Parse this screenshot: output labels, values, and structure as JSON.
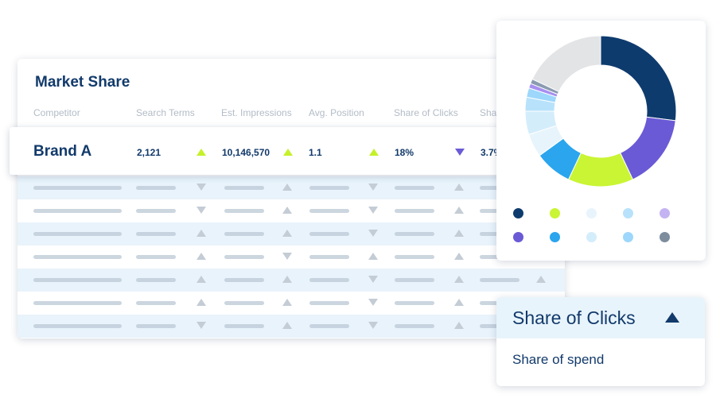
{
  "table": {
    "title": "Market Share",
    "headers": [
      "Competitor",
      "Search Terms",
      "Est. Impressions",
      "Avg. Position",
      "Share of Clicks",
      "Shar"
    ],
    "brand_row": {
      "name": "Brand A",
      "search_terms": "2,121",
      "est_impressions": "10,146,570",
      "avg_position": "1.1",
      "share_of_clicks": "18%",
      "share_partial": "3.7%",
      "trends": [
        "up",
        "up",
        "up",
        "down"
      ]
    },
    "placeholder_rows": [
      [
        "dn",
        "up",
        "dn",
        "up"
      ],
      [
        "dn",
        "up",
        "dn",
        "up"
      ],
      [
        "up",
        "up",
        "dn",
        "up"
      ],
      [
        "up",
        "dn",
        "up",
        "up"
      ],
      [
        "up",
        "up",
        "dn",
        "up"
      ],
      [
        "up",
        "up",
        "dn",
        "up"
      ],
      [
        "dn",
        "up",
        "dn",
        "up"
      ]
    ]
  },
  "chart_data": {
    "type": "pie",
    "values": [
      27,
      16,
      14,
      8,
      5,
      5,
      3,
      2,
      1,
      1,
      18
    ],
    "colors": [
      "#0e3b6e",
      "#6a5ad6",
      "#c9f534",
      "#2ba5ee",
      "#e7f4fc",
      "#d4edfb",
      "#b8e2fb",
      "#9dd7fb",
      "#a78ff0",
      "#8a9bb0",
      "#e3e4e6"
    ]
  },
  "legend": {
    "colors": [
      "#0e3b6e",
      "#c9f534",
      "#e7f4fc",
      "#b8e2fb",
      "#c4b3f3",
      "#6a5ad6",
      "#2ba5ee",
      "#d4edfb",
      "#9dd7fb",
      "#7d8d9e"
    ]
  },
  "dropdown": {
    "selected": "Share of Clicks",
    "option": "Share of spend"
  }
}
